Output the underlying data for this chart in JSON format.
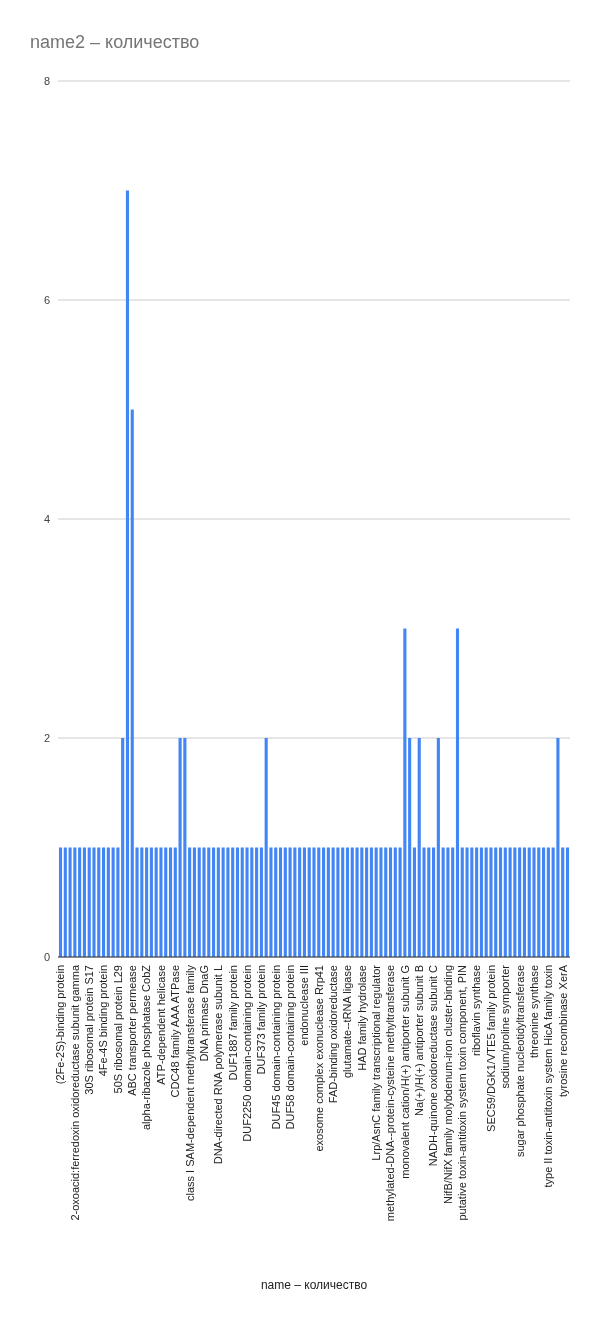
{
  "chart_data": {
    "type": "bar",
    "title": "name2 – количество",
    "xlabel": "name – количество",
    "categories": [
      "(2Fe-2S)-binding protein",
      null,
      null,
      "2-oxoacid:ferredoxin oxidoreductase subunit gamma",
      null,
      null,
      "30S ribosomal protein S17",
      null,
      null,
      "4Fe-4S binding protein",
      null,
      null,
      "50S ribosomal protein L29",
      null,
      null,
      "ABC transporter permease",
      null,
      null,
      "alpha-ribazole phosphatase CobZ",
      null,
      null,
      "ATP-dependent helicase",
      null,
      null,
      "CDC48 family AAA ATPase",
      null,
      null,
      "class I SAM-dependent methyltransferase family",
      null,
      null,
      "DNA primase DnaG",
      null,
      null,
      "DNA-directed RNA polymerase subunit L",
      null,
      null,
      "DUF1887 family protein",
      null,
      null,
      "DUF2250 domain-containing protein",
      null,
      null,
      "DUF373 family protein",
      null,
      null,
      "DUF45 domain-containing protein",
      null,
      null,
      "DUF58 domain-containing protein",
      null,
      null,
      "endonuclease III",
      null,
      null,
      "exosome complex exonuclease Rrp41",
      null,
      null,
      "FAD-binding oxidoreductase",
      null,
      null,
      "glutamate--tRNA ligase",
      null,
      null,
      "HAD family hydrolase",
      null,
      null,
      "Lrp/AsnC family transcriptional regulator",
      null,
      null,
      "methylated-DNA--protein-cysteine methyltransferase",
      null,
      null,
      "monovalent cation/H(+) antiporter subunit G",
      null,
      null,
      "Na(+)/H(+) antiporter subunit B",
      null,
      null,
      "NADH-quinone oxidoreductase subunit C",
      null,
      null,
      "NifB/NifX family molybdenum-iron cluster-binding",
      null,
      null,
      "putative toxin-antitoxin system toxin component, PIN",
      null,
      null,
      "riboflavin synthase",
      null,
      null,
      "SEC59/DGK1/VTE5 family protein",
      null,
      null,
      "sodium/proline symporter",
      null,
      null,
      "sugar phosphate nucleotidyltransferase",
      null,
      null,
      "threonine synthase",
      null,
      null,
      "type II toxin-antitoxin system HicA family toxin",
      null,
      null,
      "tyrosine recombinase XerA",
      null
    ],
    "values": [
      1,
      1,
      1,
      1,
      1,
      1,
      1,
      1,
      1,
      1,
      1,
      1,
      1,
      2,
      7,
      5,
      1,
      1,
      1,
      1,
      1,
      1,
      1,
      1,
      1,
      2,
      2,
      1,
      1,
      1,
      1,
      1,
      1,
      1,
      1,
      1,
      1,
      1,
      1,
      1,
      1,
      1,
      1,
      2,
      1,
      1,
      1,
      1,
      1,
      1,
      1,
      1,
      1,
      1,
      1,
      1,
      1,
      1,
      1,
      1,
      1,
      1,
      1,
      1,
      1,
      1,
      1,
      1,
      1,
      1,
      1,
      1,
      3,
      2,
      1,
      2,
      1,
      1,
      1,
      2,
      1,
      1,
      1,
      3,
      1,
      1,
      1,
      1,
      1,
      1,
      1,
      1,
      1,
      1,
      1,
      1,
      1,
      1,
      1,
      1,
      1,
      1,
      1,
      1,
      2,
      1,
      1
    ],
    "color": "#4285f4",
    "ylim": [
      0,
      8
    ],
    "yticks": [
      0,
      2,
      4,
      6,
      8
    ],
    "grid": "y"
  }
}
